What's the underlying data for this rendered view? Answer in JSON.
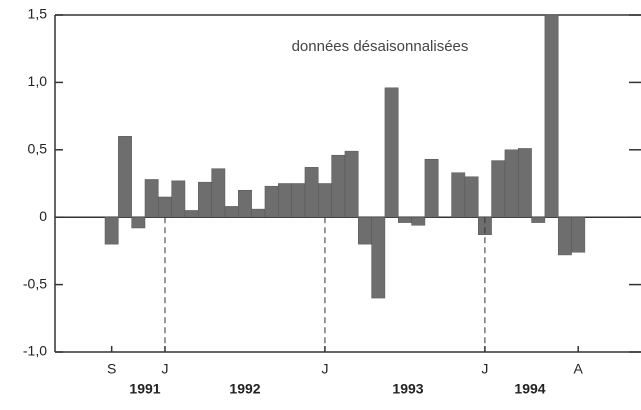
{
  "chart_data": {
    "type": "bar",
    "annotation": "données désaisonnalisées",
    "categories": [
      "S",
      null,
      null,
      null,
      "J",
      null,
      null,
      null,
      null,
      null,
      null,
      null,
      null,
      null,
      null,
      null,
      "J",
      null,
      null,
      null,
      null,
      null,
      null,
      null,
      null,
      null,
      null,
      null,
      "J",
      null,
      null,
      null,
      null,
      null,
      null,
      "A"
    ],
    "years": [
      "1991",
      "1992",
      "1993",
      "1994"
    ],
    "values": [
      -0.2,
      0.6,
      -0.08,
      0.28,
      0.15,
      0.27,
      0.05,
      0.26,
      0.36,
      0.08,
      0.2,
      0.06,
      0.23,
      0.25,
      0.25,
      0.37,
      0.25,
      0.46,
      0.49,
      -0.2,
      -0.6,
      0.96,
      -0.04,
      -0.06,
      0.43,
      0,
      0.33,
      0.3,
      -0.13,
      0.42,
      0.5,
      0.51,
      -0.04,
      1.5,
      -0.28,
      -0.26
    ],
    "color": "#6e6e6e",
    "ylim": [
      -1.0,
      1.5
    ],
    "yticks": [
      {
        "value": -1.0,
        "label": "-1,0"
      },
      {
        "value": -0.5,
        "label": "-0,5"
      },
      0,
      {
        "value": 0.5,
        "label": "0,5"
      },
      {
        "value": 1.0,
        "label": "1,0"
      },
      {
        "value": 1.5,
        "label": "1,5"
      }
    ]
  }
}
